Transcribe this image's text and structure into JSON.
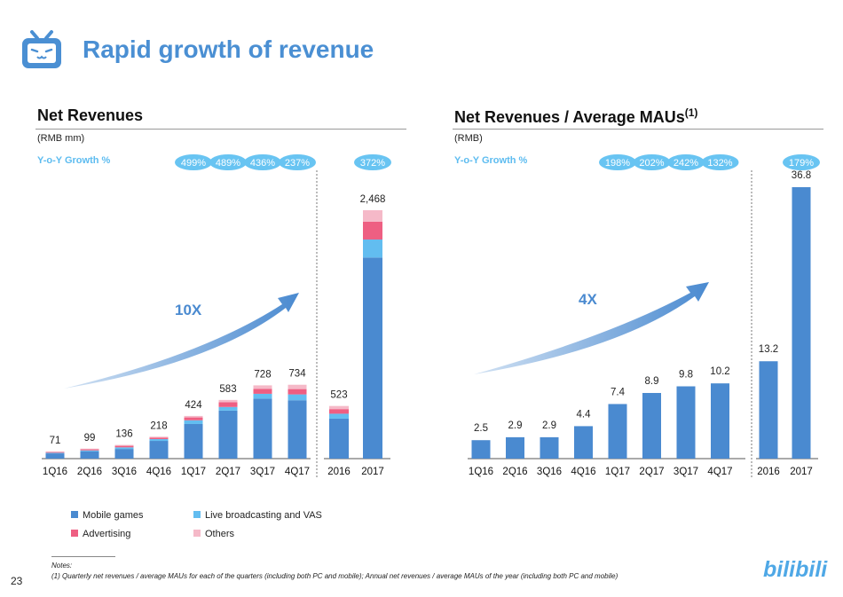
{
  "title": "Rapid growth of revenue",
  "page_number": "23",
  "notes": {
    "heading": "Notes:",
    "items": [
      "(1)    Quarterly net revenues / average MAUs for each of the quarters (including both PC and mobile); Annual net revenues / average MAUs of the year (including both PC and mobile)"
    ]
  },
  "colors": {
    "mobile_games": "#4a8ad0",
    "live_broadcasting_vas": "#62bdf0",
    "advertising": "#ee5f82",
    "others": "#f5b9c8",
    "bar_single": "#4a8ad0",
    "accent_title": "#4a8fd3",
    "yoy_bubble": "#68c4f2"
  },
  "legend": [
    {
      "key": "mobile_games",
      "label": "Mobile games",
      "color": "#4a8ad0"
    },
    {
      "key": "live_broadcasting_vas",
      "label": "Live broadcasting and VAS",
      "color": "#62bdf0"
    },
    {
      "key": "advertising",
      "label": "Advertising",
      "color": "#ee5f82"
    },
    {
      "key": "others",
      "label": "Others",
      "color": "#f5b9c8"
    }
  ],
  "chart_data": [
    {
      "type": "bar",
      "stacked": true,
      "title": "Net Revenues",
      "title_sup": "",
      "unit": "(RMB mm)",
      "yoy_label": "Y-o-Y Growth %",
      "arrow_label": "10X",
      "quarterly": {
        "categories": [
          "1Q16",
          "2Q16",
          "3Q16",
          "4Q16",
          "1Q17",
          "2Q17",
          "3Q17",
          "4Q17"
        ],
        "totals": [
          71,
          99,
          136,
          218,
          424,
          583,
          728,
          734
        ],
        "series": [
          {
            "name": "Mobile games",
            "values": [
              52,
              73,
              96,
              176,
              344,
              477,
              596,
              580
            ]
          },
          {
            "name": "Live broadcasting and VAS",
            "values": [
              6,
              9,
              16,
              18,
              37,
              36,
              48,
              58
            ]
          },
          {
            "name": "Advertising",
            "values": [
              7,
              10,
              15,
              15,
              28,
              48,
              48,
              53
            ]
          },
          {
            "name": "Others",
            "values": [
              6,
              7,
              9,
              9,
              15,
              22,
              36,
              43
            ]
          }
        ],
        "yoy": [
          "",
          "",
          "",
          "",
          "499%",
          "489%",
          "436%",
          "237%"
        ]
      },
      "annual": {
        "categories": [
          "2016",
          "2017"
        ],
        "totals": [
          523,
          2468
        ],
        "series": [
          {
            "name": "Mobile games",
            "values": [
              397,
              1998
            ]
          },
          {
            "name": "Live broadcasting and VAS",
            "values": [
              49,
              179
            ]
          },
          {
            "name": "Advertising",
            "values": [
              46,
              177
            ]
          },
          {
            "name": "Others",
            "values": [
              31,
              114
            ]
          }
        ],
        "yoy": [
          "",
          "372%"
        ]
      }
    },
    {
      "type": "bar",
      "stacked": false,
      "title": "Net Revenues / Average MAUs",
      "title_sup": "(1)",
      "unit": "(RMB)",
      "yoy_label": "Y-o-Y Growth %",
      "arrow_label": "4X",
      "quarterly": {
        "categories": [
          "1Q16",
          "2Q16",
          "3Q16",
          "4Q16",
          "1Q17",
          "2Q17",
          "3Q17",
          "4Q17"
        ],
        "values": [
          2.5,
          2.9,
          2.9,
          4.4,
          7.4,
          8.9,
          9.8,
          10.2
        ],
        "labels": [
          "2.5",
          "2.9",
          "2.9",
          "4.4",
          "7.4",
          "8.9",
          "9.8",
          "10.2"
        ],
        "yoy": [
          "",
          "",
          "",
          "",
          "198%",
          "202%",
          "242%",
          "132%"
        ]
      },
      "annual": {
        "categories": [
          "2016",
          "2017"
        ],
        "values": [
          13.2,
          36.8
        ],
        "labels": [
          "13.2",
          "36.8"
        ],
        "yoy": [
          "",
          "179%"
        ]
      }
    }
  ]
}
